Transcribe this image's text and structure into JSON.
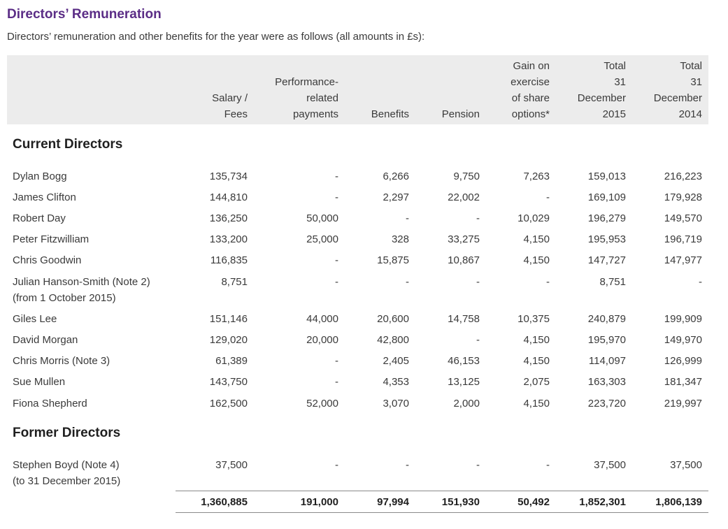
{
  "title": "Directors’ Remuneration",
  "subtitle": "Directors’ remuneration and other benefits for the year were as follows (all amounts in £s):",
  "headers": [
    [
      "Salary /",
      "Fees"
    ],
    [
      "Performance-",
      "related",
      "payments"
    ],
    [
      "Benefits"
    ],
    [
      "Pension"
    ],
    [
      "Gain on",
      "exercise",
      "of share",
      "options*"
    ],
    [
      "Total",
      "31",
      "December",
      "2015"
    ],
    [
      "Total",
      "31",
      "December",
      "2014"
    ]
  ],
  "sections": {
    "current": "Current Directors",
    "former": "Former Directors"
  },
  "current_rows": [
    {
      "name": [
        "Dylan Bogg"
      ],
      "values": [
        "135,734",
        "-",
        "6,266",
        "9,750",
        "7,263",
        "159,013",
        "216,223"
      ]
    },
    {
      "name": [
        "James Clifton"
      ],
      "values": [
        "144,810",
        "-",
        "2,297",
        "22,002",
        "-",
        "169,109",
        "179,928"
      ]
    },
    {
      "name": [
        "Robert Day"
      ],
      "values": [
        "136,250",
        "50,000",
        "-",
        "-",
        "10,029",
        "196,279",
        "149,570"
      ]
    },
    {
      "name": [
        "Peter Fitzwilliam"
      ],
      "values": [
        "133,200",
        "25,000",
        "328",
        "33,275",
        "4,150",
        "195,953",
        "196,719"
      ]
    },
    {
      "name": [
        "Chris Goodwin"
      ],
      "values": [
        "116,835",
        "-",
        "15,875",
        "10,867",
        "4,150",
        "147,727",
        "147,977"
      ]
    },
    {
      "name": [
        "Julian Hanson-Smith (Note 2)",
        "(from 1 October 2015)"
      ],
      "values": [
        "8,751",
        "-",
        "-",
        "-",
        "-",
        "8,751",
        "-"
      ]
    },
    {
      "name": [
        "Giles Lee"
      ],
      "values": [
        "151,146",
        "44,000",
        "20,600",
        "14,758",
        "10,375",
        "240,879",
        "199,909"
      ]
    },
    {
      "name": [
        "David Morgan"
      ],
      "values": [
        "129,020",
        "20,000",
        "42,800",
        "-",
        "4,150",
        "195,970",
        "149,970"
      ]
    },
    {
      "name": [
        "Chris Morris (Note 3)"
      ],
      "values": [
        "61,389",
        "-",
        "2,405",
        "46,153",
        "4,150",
        "114,097",
        "126,999"
      ]
    },
    {
      "name": [
        "Sue Mullen"
      ],
      "values": [
        "143,750",
        "-",
        "4,353",
        "13,125",
        "2,075",
        "163,303",
        "181,347"
      ]
    },
    {
      "name": [
        "Fiona Shepherd"
      ],
      "values": [
        "162,500",
        "52,000",
        "3,070",
        "2,000",
        "4,150",
        "223,720",
        "219,997"
      ]
    }
  ],
  "former_rows": [
    {
      "name": [
        "Stephen Boyd (Note 4)",
        "(to 31 December 2015)"
      ],
      "values": [
        "37,500",
        "-",
        "-",
        "-",
        "-",
        "37,500",
        "37,500"
      ]
    }
  ],
  "totals": [
    "1,360,885",
    "191,000",
    "97,994",
    "151,930",
    "50,492",
    "1,852,301",
    "1,806,139"
  ]
}
